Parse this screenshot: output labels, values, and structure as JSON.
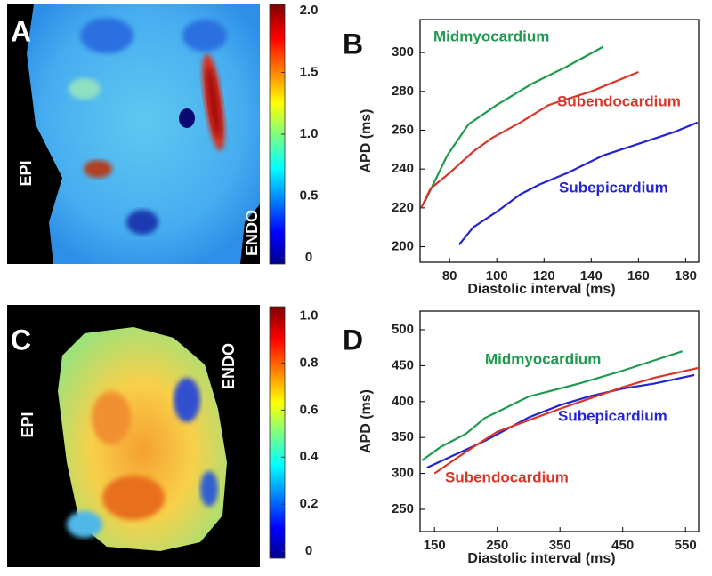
{
  "chart_data": [
    {
      "type": "heatmap",
      "panel": "A",
      "annotations": [
        "EPI",
        "ENDO"
      ],
      "clim": [
        -0.05,
        2.05
      ],
      "colorbar_ticks": [
        0,
        0.5,
        {
          "value": 1,
          "label": "1.0"
        },
        1.5,
        {
          "value": 2,
          "label": "2.0"
        }
      ]
    },
    {
      "type": "line",
      "panel": "B",
      "xlabel": "Diastolic interval (ms)",
      "ylabel": "APD (ms)",
      "xlim": [
        67.5,
        185.5
      ],
      "ylim": [
        192,
        317
      ],
      "xticks": [
        80,
        100,
        120,
        140,
        160,
        180
      ],
      "yticks": [
        200,
        220,
        240,
        260,
        280,
        300
      ],
      "series": [
        {
          "name": "Midmyocardium",
          "color": "#1f9a50",
          "x": [
            69,
            79,
            88,
            100,
            115,
            130,
            145
          ],
          "values": [
            222,
            247,
            263,
            273,
            284,
            293,
            303
          ]
        },
        {
          "name": "Subendocardium",
          "color": "#d8362a",
          "x": [
            68,
            72,
            80,
            90,
            98,
            110,
            122,
            140,
            160
          ],
          "values": [
            220,
            230,
            238,
            249,
            256,
            264,
            273,
            280,
            290
          ]
        },
        {
          "name": "Subepicardium",
          "color": "#2424d0",
          "x": [
            84,
            90,
            100,
            110,
            118,
            130,
            145,
            160,
            175,
            185
          ],
          "values": [
            201,
            210,
            218,
            227,
            232,
            238,
            247,
            253,
            259,
            264
          ]
        }
      ]
    },
    {
      "type": "heatmap",
      "panel": "C",
      "annotations": [
        "EPI",
        "ENDO"
      ],
      "clim": [
        -0.03,
        1.04
      ],
      "colorbar_ticks": [
        0,
        0.2,
        0.4,
        0.6,
        0.8,
        {
          "value": 1,
          "label": "1.0"
        }
      ]
    },
    {
      "type": "line",
      "panel": "D",
      "xlabel": "Diastolic interval (ms)",
      "ylabel": "APD (ms)",
      "xlim": [
        127,
        571
      ],
      "ylim": [
        219,
        526
      ],
      "xticks": [
        150,
        250,
        350,
        450,
        550
      ],
      "yticks": [
        250,
        300,
        350,
        400,
        450,
        500
      ],
      "series": [
        {
          "name": "Midmyocardium",
          "color": "#1f9a50",
          "x": [
            130,
            160,
            200,
            230,
            300,
            380,
            450,
            545
          ],
          "values": [
            318,
            337,
            355,
            377,
            407,
            425,
            443,
            470
          ]
        },
        {
          "name": "Subepicardium",
          "color": "#2424d0",
          "x": [
            138,
            180,
            230,
            300,
            350,
            400,
            450,
            500,
            564
          ],
          "values": [
            308,
            325,
            345,
            378,
            395,
            408,
            418,
            425,
            437
          ]
        },
        {
          "name": "Subendocardium",
          "color": "#d8362a",
          "x": [
            150,
            200,
            250,
            300,
            350,
            400,
            450,
            500,
            571
          ],
          "values": [
            300,
            330,
            358,
            374,
            390,
            405,
            420,
            433,
            447
          ]
        }
      ]
    }
  ]
}
